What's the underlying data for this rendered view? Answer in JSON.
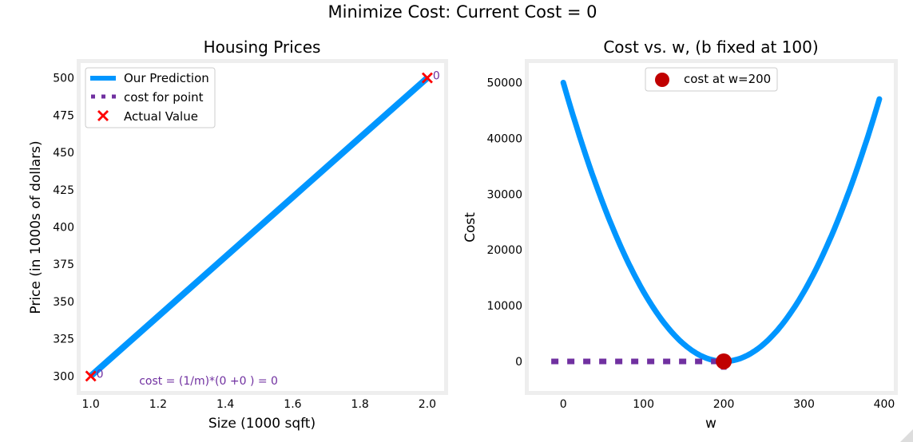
{
  "figure": {
    "suptitle": "Minimize Cost: Current Cost = 0"
  },
  "colors": {
    "prediction": "#0096ff",
    "cost_line": "#7030a0",
    "actual": "#ff0000",
    "marker": "#c00000",
    "axes_frame": "#eeeeee"
  },
  "chart_data": [
    {
      "type": "line",
      "title": "Housing Prices",
      "xlabel": "Size (1000 sqft)",
      "ylabel": "Price (in 1000s of dollars)",
      "xlim": [
        0.97,
        2.05
      ],
      "ylim": [
        290,
        510
      ],
      "xticks": [
        1.0,
        1.2,
        1.4,
        1.6,
        1.8,
        2.0
      ],
      "xtick_labels": [
        "1.0",
        "1.2",
        "1.4",
        "1.6",
        "1.8",
        "2.0"
      ],
      "yticks": [
        300,
        325,
        350,
        375,
        400,
        425,
        450,
        475,
        500
      ],
      "ytick_labels": [
        "300",
        "325",
        "350",
        "375",
        "400",
        "425",
        "450",
        "475",
        "500"
      ],
      "grid": false,
      "legend_position": "top-left",
      "series": [
        {
          "name": "Our Prediction",
          "kind": "line",
          "x": [
            1.0,
            2.0
          ],
          "y": [
            300,
            500
          ]
        },
        {
          "name": "cost for point",
          "kind": "dotted",
          "x": [],
          "y": []
        },
        {
          "name": "Actual Value",
          "kind": "x-marker",
          "x": [
            1.0,
            2.0
          ],
          "y": [
            300,
            500
          ]
        }
      ],
      "point_labels": [
        {
          "x": 1.0,
          "y": 300,
          "text": "0"
        },
        {
          "x": 2.0,
          "y": 500,
          "text": "0"
        }
      ],
      "annotation": {
        "text": "cost = (1/m)*(0 +0 ) = 0",
        "x": 1.35,
        "y": 297
      }
    },
    {
      "type": "line",
      "title": "Cost vs. w, (b fixed at 100)",
      "xlabel": "w",
      "ylabel": "Cost",
      "xlim": [
        -43,
        412
      ],
      "ylim": [
        -5300,
        53500
      ],
      "xticks": [
        0,
        100,
        200,
        300,
        400
      ],
      "xtick_labels": [
        "0",
        "100",
        "200",
        "300",
        "400"
      ],
      "yticks": [
        0,
        10000,
        20000,
        30000,
        40000,
        50000
      ],
      "ytick_labels": [
        "0",
        "10000",
        "20000",
        "30000",
        "40000",
        "50000"
      ],
      "grid": false,
      "legend_position": "top-center",
      "curve": {
        "formula": "0.5*((w-200)^2 + (2w-400)^2)/2 = 1.25*(w-200)^2",
        "w_min": 0,
        "w_max": 395
      },
      "cost_line": {
        "x_start": -15,
        "x_end": 200,
        "y": 0,
        "drop_to": -1500
      },
      "marker": {
        "name": "cost at w=200",
        "x": 200,
        "y": 0
      }
    }
  ]
}
